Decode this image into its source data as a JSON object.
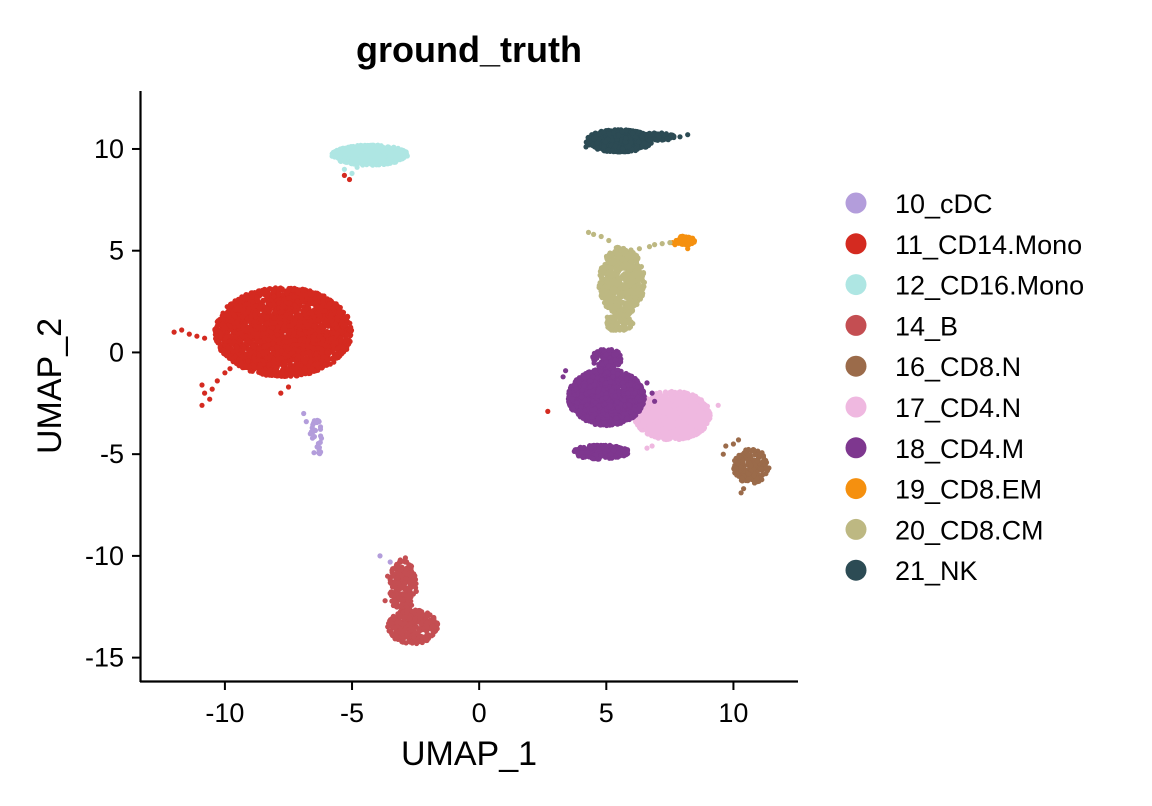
{
  "chart_data": {
    "type": "scatter",
    "title": "ground_truth",
    "xlabel": "UMAP_1",
    "ylabel": "UMAP_2",
    "xlim": [
      -13.3,
      12.5
    ],
    "ylim": [
      -16.1,
      12.8
    ],
    "xticks": [
      -10,
      -5,
      0,
      5,
      10
    ],
    "yticks": [
      -15,
      -10,
      -5,
      0,
      5,
      10
    ],
    "grid": false,
    "legend_position": "right",
    "series": [
      {
        "name": "10_cDC",
        "color": "#B39DDB",
        "clusters": [
          {
            "cx": -6.4,
            "cy": -4.2,
            "rx": 0.25,
            "ry": 1.0,
            "n": 30
          }
        ],
        "points": [
          [
            -6.9,
            -3.0
          ],
          [
            -6.8,
            -3.4
          ],
          [
            -6.6,
            -3.9
          ],
          [
            -3.9,
            -10.0
          ],
          [
            -3.5,
            -10.3
          ]
        ]
      },
      {
        "name": "11_CD14.Mono",
        "color": "#D42A20",
        "clusters": [
          {
            "cx": -7.7,
            "cy": 1.0,
            "rx": 2.7,
            "ry": 2.2,
            "n": 2600
          }
        ],
        "points": [
          [
            -12.0,
            1.0
          ],
          [
            -11.7,
            1.1
          ],
          [
            -11.4,
            0.9
          ],
          [
            -11.1,
            0.8
          ],
          [
            -10.8,
            0.7
          ],
          [
            -10.9,
            -1.6
          ],
          [
            -10.8,
            -2.0
          ],
          [
            -10.6,
            -2.3
          ],
          [
            -10.9,
            -2.6
          ],
          [
            -10.5,
            -1.8
          ],
          [
            -10.3,
            -1.4
          ],
          [
            -10.0,
            -1.0
          ],
          [
            -9.8,
            -0.8
          ],
          [
            -5.1,
            8.5
          ],
          [
            -5.3,
            8.7
          ],
          [
            -7.5,
            -1.7
          ],
          [
            -7.8,
            -2.0
          ],
          [
            2.7,
            -2.9
          ]
        ]
      },
      {
        "name": "12_CD16.Mono",
        "color": "#AEE6E3",
        "clusters": [
          {
            "cx": -4.3,
            "cy": 9.7,
            "rx": 1.5,
            "ry": 0.5,
            "n": 500
          }
        ],
        "points": [
          [
            -5.3,
            9.0
          ],
          [
            -5.0,
            8.8
          ],
          [
            -4.8,
            9.1
          ]
        ]
      },
      {
        "name": "14_B",
        "color": "#C44E52",
        "clusters": [
          {
            "cx": -3.0,
            "cy": -11.5,
            "rx": 0.55,
            "ry": 1.3,
            "n": 220
          },
          {
            "cx": -2.6,
            "cy": -13.5,
            "rx": 1.0,
            "ry": 0.85,
            "n": 300
          }
        ],
        "points": [
          [
            -3.7,
            -12.2
          ],
          [
            -3.6,
            -11.0
          ],
          [
            -3.1,
            -10.2
          ],
          [
            -2.9,
            -10.1
          ]
        ]
      },
      {
        "name": "16_CD8.N",
        "color": "#9B6B4A",
        "clusters": [
          {
            "cx": 10.7,
            "cy": -5.6,
            "rx": 0.7,
            "ry": 0.85,
            "n": 200
          }
        ],
        "points": [
          [
            10.2,
            -4.3
          ],
          [
            10.0,
            -4.5
          ],
          [
            9.7,
            -4.6
          ],
          [
            9.6,
            -5.0
          ],
          [
            10.4,
            -6.7
          ],
          [
            10.3,
            -6.9
          ]
        ]
      },
      {
        "name": "17_CD4.N",
        "color": "#EFB8E0",
        "clusters": [
          {
            "cx": 7.6,
            "cy": -3.1,
            "rx": 1.5,
            "ry": 1.2,
            "n": 1100
          }
        ],
        "points": [
          [
            6.8,
            -4.6
          ],
          [
            6.6,
            -4.7
          ],
          [
            9.4,
            -2.6
          ]
        ]
      },
      {
        "name": "18_CD4.M",
        "color": "#7E378F",
        "clusters": [
          {
            "cx": 5.0,
            "cy": -2.2,
            "rx": 1.5,
            "ry": 1.4,
            "n": 1600
          },
          {
            "cx": 4.8,
            "cy": -4.9,
            "rx": 1.1,
            "ry": 0.35,
            "n": 250
          },
          {
            "cx": 5.0,
            "cy": -0.3,
            "rx": 0.6,
            "ry": 0.5,
            "n": 120
          }
        ],
        "points": [
          [
            3.4,
            -0.9
          ],
          [
            3.3,
            -1.2
          ],
          [
            6.6,
            -1.5
          ],
          [
            6.8,
            -2.0
          ],
          [
            6.9,
            -2.4
          ]
        ]
      },
      {
        "name": "19_CD8.EM",
        "color": "#F5900F",
        "clusters": [
          {
            "cx": 8.1,
            "cy": 5.5,
            "rx": 0.38,
            "ry": 0.22,
            "n": 70
          }
        ],
        "points": [
          [
            7.6,
            5.4
          ],
          [
            7.7,
            5.3
          ],
          [
            8.2,
            5.1
          ]
        ]
      },
      {
        "name": "20_CD8.CM",
        "color": "#BDB882",
        "clusters": [
          {
            "cx": 5.6,
            "cy": 3.5,
            "rx": 0.9,
            "ry": 1.7,
            "n": 650
          },
          {
            "cx": 5.5,
            "cy": 1.5,
            "rx": 0.55,
            "ry": 0.45,
            "n": 80
          }
        ],
        "points": [
          [
            4.3,
            5.9
          ],
          [
            4.5,
            5.8
          ],
          [
            4.8,
            5.7
          ],
          [
            5.1,
            5.5
          ],
          [
            6.3,
            5.1
          ],
          [
            6.7,
            5.2
          ],
          [
            6.9,
            5.3
          ],
          [
            7.2,
            5.35
          ],
          [
            7.5,
            5.4
          ],
          [
            5.2,
            1.1
          ],
          [
            5.9,
            1.2
          ]
        ]
      },
      {
        "name": "21_NK",
        "color": "#2C4B54",
        "clusters": [
          {
            "cx": 5.5,
            "cy": 10.4,
            "rx": 1.3,
            "ry": 0.55,
            "n": 650
          },
          {
            "cx": 7.0,
            "cy": 10.6,
            "rx": 0.7,
            "ry": 0.2,
            "n": 80
          }
        ],
        "points": [
          [
            4.2,
            10.1
          ],
          [
            7.9,
            10.6
          ],
          [
            8.2,
            10.7
          ]
        ]
      }
    ]
  }
}
